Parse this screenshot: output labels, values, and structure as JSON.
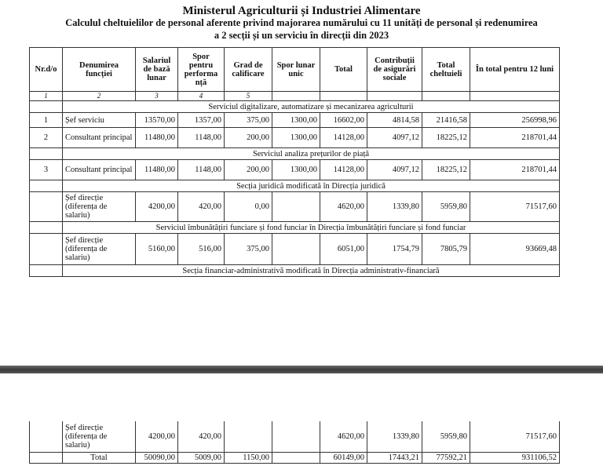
{
  "title": "Ministerul  Agriculturii și Industriei Alimentare",
  "subtitle1": "Calculul cheltuielilor de personal aferente privind majorarea numărului cu 11 unități de personal și redenumirea",
  "subtitle2": "a 2 secții și un serviciu în direcții  din 2023",
  "headers": [
    "Nr.d/o",
    "Denumirea funcției",
    "Salariul de bază lunar",
    "Spor pentru performa nță",
    "Grad de calificare",
    "Spor lunar unic",
    "Total",
    "Contribuții de asigurări sociale",
    "Total cheltuieli",
    "În total pentru 12 luni"
  ],
  "col_numbers": [
    "1",
    "2",
    "3",
    "4",
    "5"
  ],
  "sections": [
    "Serviciul digitalizare, automatizare și mecanizarea agriculturii",
    "Serviciul analiza prețurilor de piață",
    "Secția juridică modificată în Direcția juridică",
    "Serviciul îmbunătățiri funciare și fond funciar în Direcția îmbunătățiri funciare și fond funciar",
    "Secția financiar-administrativă modificată în Direcția administrativ-financiară"
  ],
  "rows": [
    [
      "1",
      "Șef serviciu",
      "13570,00",
      "1357,00",
      "375,00",
      "1300,00",
      "16602,00",
      "4814,58",
      "21416,58",
      "256998,96"
    ],
    [
      "2",
      "Consultant principal",
      "11480,00",
      "1148,00",
      "200,00",
      "1300,00",
      "14128,00",
      "4097,12",
      "18225,12",
      "218701,44"
    ],
    [
      "3",
      "Consultant principal",
      "11480,00",
      "1148,00",
      "200,00",
      "1300,00",
      "14128,00",
      "4097,12",
      "18225,12",
      "218701,44"
    ],
    [
      "",
      "Șef direcție (diferența de salariu)",
      "4200,00",
      "420,00",
      "0,00",
      "",
      "4620,00",
      "1339,80",
      "5959,80",
      "71517,60"
    ],
    [
      "",
      "Șef direcție (diferența de salariu)",
      "5160,00",
      "516,00",
      "375,00",
      "",
      "6051,00",
      "1754,79",
      "7805,79",
      "93669,48"
    ]
  ],
  "page2_rows": [
    [
      "",
      "Șef direcție (diferența de salariu)",
      "4200,00",
      "420,00",
      "",
      "",
      "4620,00",
      "1339,80",
      "5959,80",
      "71517,60"
    ]
  ],
  "total_row": {
    "label": "Total",
    "values": [
      "50090,00",
      "5009,00",
      "1150,00",
      "",
      "60149,00",
      "17443,21",
      "77592,21",
      "931106,52"
    ]
  }
}
